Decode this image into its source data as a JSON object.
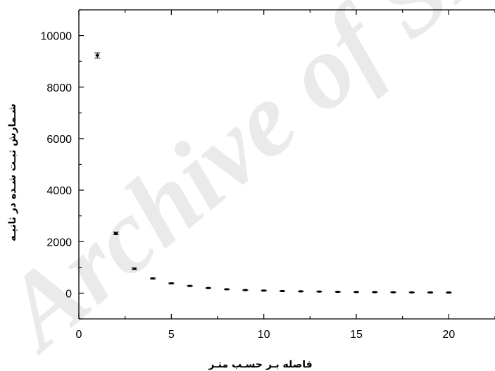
{
  "watermark": "Archive of SID",
  "chart_data": {
    "type": "scatter",
    "title": "",
    "xlabel": "فاصله بـر حسـب متـر",
    "ylabel": "شـمارش ثبـت شـده در ثانیـه",
    "xlim": [
      0,
      22.5
    ],
    "ylim": [
      -1000,
      11000
    ],
    "xticks": [
      0,
      5,
      10,
      15,
      20
    ],
    "yticks": [
      0,
      2000,
      4000,
      6000,
      8000,
      10000
    ],
    "x": [
      1,
      2,
      3,
      4,
      5,
      6,
      7,
      8,
      9,
      10,
      11,
      12,
      13,
      14,
      15,
      16,
      17,
      18,
      19,
      20
    ],
    "y": [
      9230,
      2320,
      950,
      570,
      380,
      280,
      200,
      150,
      120,
      100,
      80,
      70,
      60,
      50,
      45,
      40,
      35,
      30,
      28,
      25
    ],
    "yerr": [
      100,
      50,
      30,
      20,
      15,
      10,
      10,
      10,
      10,
      10,
      10,
      10,
      10,
      10,
      10,
      10,
      10,
      10,
      10,
      10
    ],
    "grid": false,
    "legend": "none",
    "colors": {
      "marker": "#000000",
      "axis": "#000000",
      "watermark": "#d9d9d9"
    }
  }
}
